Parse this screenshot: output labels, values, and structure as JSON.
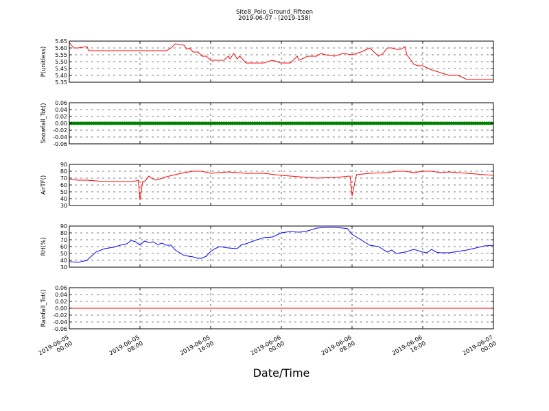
{
  "figure": {
    "title": "Site8_Polo_Ground_Fifteen",
    "subtitle": "2019-06-07 - (2019-158)",
    "xlabel": "Date/Time",
    "x_ticks": [
      {
        "at": 0,
        "line1": "2019-06-05",
        "line2": "00:00"
      },
      {
        "at": 8,
        "line1": "2019-06-05",
        "line2": "08:00"
      },
      {
        "at": 16,
        "line1": "2019-06-05",
        "line2": "16:00"
      },
      {
        "at": 24,
        "line1": "2019-06-06",
        "line2": "00:00"
      },
      {
        "at": 32,
        "line1": "2019-06-06",
        "line2": "08:00"
      },
      {
        "at": 40,
        "line1": "2019-06-06",
        "line2": "16:00"
      },
      {
        "at": 48,
        "line1": "2019-06-07",
        "line2": "00:00"
      }
    ]
  },
  "chart_data": [
    {
      "type": "line",
      "ylabel": "P(unitless)",
      "color": "#ff0000",
      "ylim": [
        5.35,
        5.65
      ],
      "yticks": [
        5.35,
        5.4,
        5.45,
        5.5,
        5.55,
        5.6,
        5.65
      ],
      "tick_decimals": 2,
      "grid": true,
      "marker": false,
      "x_hours": [
        0,
        0.5,
        1,
        2,
        2.2,
        2.4,
        4,
        6,
        8,
        10,
        11,
        11.5,
        12,
        13,
        13.3,
        13.6,
        14,
        14.6,
        15,
        15.5,
        16,
        17,
        17.5,
        18,
        18.2,
        18.6,
        19,
        19.3,
        20,
        21,
        22,
        23,
        23.5,
        24,
        25,
        25.5,
        25.8,
        26,
        27,
        28,
        28.5,
        29,
        30,
        31,
        32,
        33,
        34,
        35,
        35.5,
        36,
        36.5,
        37,
        37.5,
        38,
        38.2,
        38.8,
        39,
        39.5,
        40,
        41,
        42,
        43,
        44,
        45,
        46,
        47,
        48
      ],
      "values": [
        5.64,
        5.6,
        5.6,
        5.61,
        5.58,
        5.58,
        5.58,
        5.58,
        5.58,
        5.58,
        5.58,
        5.6,
        5.63,
        5.62,
        5.59,
        5.6,
        5.57,
        5.57,
        5.54,
        5.54,
        5.51,
        5.51,
        5.51,
        5.54,
        5.52,
        5.56,
        5.52,
        5.54,
        5.49,
        5.49,
        5.49,
        5.51,
        5.5,
        5.49,
        5.49,
        5.52,
        5.54,
        5.51,
        5.54,
        5.54,
        5.56,
        5.55,
        5.54,
        5.56,
        5.55,
        5.57,
        5.6,
        5.54,
        5.56,
        5.6,
        5.6,
        5.59,
        5.59,
        5.61,
        5.55,
        5.5,
        5.48,
        5.47,
        5.47,
        5.44,
        5.42,
        5.4,
        5.4,
        5.37,
        5.37,
        5.37,
        5.37
      ]
    },
    {
      "type": "scatter",
      "ylabel": "Snowfall_Tot()",
      "color": "#008000",
      "ylim": [
        -0.06,
        0.06
      ],
      "yticks": [
        -0.06,
        -0.04,
        -0.02,
        0.0,
        0.02,
        0.04,
        0.06
      ],
      "tick_decimals": 2,
      "grid": true,
      "marker": true,
      "x_range": [
        0,
        48
      ],
      "step_hours": 0.25,
      "constant": 0.0
    },
    {
      "type": "line",
      "ylabel": "AirTF()",
      "color": "#ff0000",
      "ylim": [
        30,
        90
      ],
      "yticks": [
        30,
        40,
        50,
        60,
        70,
        80,
        90
      ],
      "tick_decimals": 0,
      "grid": true,
      "marker": false,
      "x_hours": [
        0,
        1,
        2,
        4,
        6,
        7,
        7.6,
        7.8,
        8,
        8.3,
        8.6,
        9,
        9.3,
        9.8,
        10.3,
        11,
        12,
        13,
        14,
        15,
        16,
        18,
        20,
        22,
        24,
        26,
        28,
        30,
        31,
        31.7,
        31.8,
        32,
        32.5,
        34,
        36,
        37,
        38,
        39,
        40,
        41,
        42,
        43,
        44,
        46,
        48
      ],
      "values": [
        68,
        67,
        67,
        65,
        65,
        65,
        66,
        67,
        38,
        65,
        66,
        73,
        70,
        67,
        69,
        72,
        75,
        78,
        80,
        80,
        77,
        79,
        77,
        77,
        74,
        72,
        70,
        71,
        72,
        73,
        72,
        44,
        75,
        77,
        78,
        80,
        80,
        78,
        80,
        80,
        78,
        79,
        78,
        76,
        74
      ]
    },
    {
      "type": "line",
      "ylabel": "RH(%)",
      "color": "#0000ff",
      "ylim": [
        30,
        90
      ],
      "yticks": [
        30,
        40,
        50,
        60,
        70,
        80,
        90
      ],
      "tick_decimals": 0,
      "grid": true,
      "marker": false,
      "x_hours": [
        0,
        1,
        2,
        3,
        4,
        5,
        6,
        6.5,
        7,
        7.5,
        8,
        8.5,
        9,
        9.5,
        10,
        10.5,
        11,
        11.5,
        12,
        13,
        14,
        14.5,
        15,
        15.5,
        16,
        16.5,
        17,
        18,
        19,
        19.5,
        20,
        21,
        22,
        23,
        24,
        25,
        26,
        27,
        28,
        29,
        30,
        31,
        31.5,
        32,
        33,
        34,
        35,
        36,
        36.5,
        37,
        38,
        39,
        40,
        40.5,
        41,
        41.5,
        42,
        43,
        44,
        45,
        46,
        47,
        48
      ],
      "values": [
        38,
        37,
        40,
        52,
        57,
        59,
        63,
        64,
        69,
        67,
        62,
        68,
        66,
        67,
        63,
        65,
        62,
        62,
        55,
        47,
        45,
        43,
        43,
        46,
        53,
        57,
        60,
        58,
        57,
        63,
        64,
        69,
        73,
        74,
        80,
        82,
        81,
        83,
        87,
        88,
        88,
        87,
        86,
        78,
        70,
        62,
        60,
        52,
        55,
        50,
        52,
        56,
        52,
        51,
        56,
        52,
        51,
        51,
        53,
        55,
        58,
        61,
        62
      ]
    },
    {
      "type": "line",
      "ylabel": "Rainfall_Tot()",
      "color": "#ff0000",
      "ylim": [
        -0.06,
        0.06
      ],
      "yticks": [
        -0.06,
        -0.04,
        -0.02,
        0.0,
        0.02,
        0.04,
        0.06
      ],
      "tick_decimals": 2,
      "grid": true,
      "marker": false,
      "x_hours": [
        0,
        48
      ],
      "values": [
        0.0,
        0.0
      ]
    }
  ]
}
